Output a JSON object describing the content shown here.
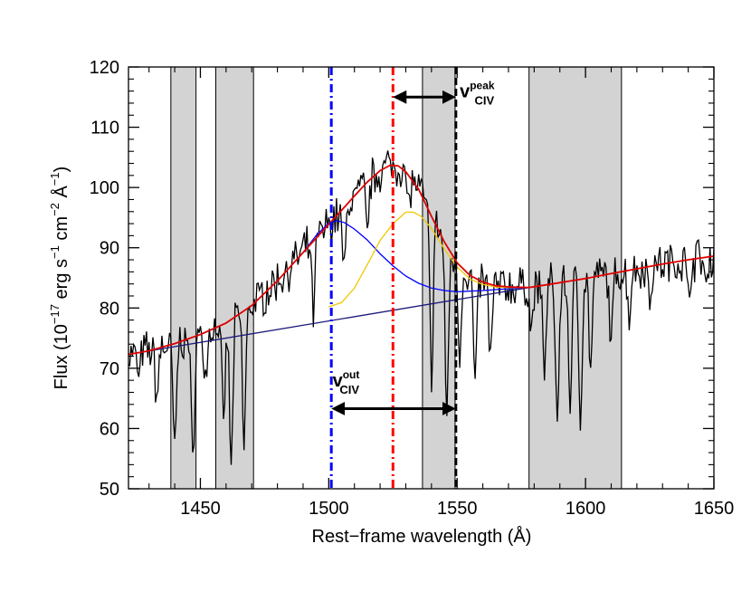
{
  "chart_data": {
    "type": "line",
    "xlabel": "Rest−frame wavelength (Å)",
    "ylabel": {
      "prefix": "Flux (10",
      "exp1": "−17",
      "mid1": " erg s",
      "exp2": "−1",
      "mid2": " cm",
      "exp3": "−2",
      "mid3": " Å",
      "exp4": "−1",
      "suffix": ")"
    },
    "xlim": [
      1422,
      1650
    ],
    "ylim": [
      50,
      120
    ],
    "xticks": [
      1450,
      1500,
      1550,
      1600,
      1650
    ],
    "yticks": [
      50,
      60,
      70,
      80,
      90,
      100,
      110,
      120
    ],
    "masked_regions": [
      [
        1438.5,
        1448.3
      ],
      [
        1456,
        1470.7
      ],
      [
        1536.5,
        1549.2
      ],
      [
        1578,
        1614
      ]
    ],
    "vlines": [
      {
        "name": "outflow-position",
        "x": 1501,
        "color": "#0000ff",
        "style": "dash-dot"
      },
      {
        "name": "peak-position",
        "x": 1525,
        "color": "#ff0000",
        "style": "dash-dot"
      },
      {
        "name": "civ-rest",
        "x": 1549.5,
        "color": "#000000",
        "style": "dashed"
      }
    ],
    "annotations": {
      "peak": {
        "base": "v",
        "sub": "CIV",
        "sup": "peak",
        "arrow_from": 1525,
        "arrow_to": 1549.5,
        "arrow_y": 115,
        "label_x": 1551,
        "label_y": 115
      },
      "out": {
        "base": "v",
        "sub": "CIV",
        "sup": "out",
        "arrow_from": 1501,
        "arrow_to": 1549.5,
        "arrow_y": 63.3,
        "label_x": 1501.5,
        "label_y": 67
      }
    },
    "series": [
      {
        "name": "continuum",
        "color": "#1a1a7a",
        "points": [
          [
            1422,
            72.3
          ],
          [
            1578,
            83.4
          ]
        ]
      },
      {
        "name": "total-model",
        "color": "#e00000",
        "points": [
          [
            1422,
            72.3
          ],
          [
            1430,
            72.9
          ],
          [
            1440,
            74.1
          ],
          [
            1450,
            75.6
          ],
          [
            1460,
            77.5
          ],
          [
            1470,
            80.4
          ],
          [
            1480,
            84.5
          ],
          [
            1490,
            89.2
          ],
          [
            1500,
            93.9
          ],
          [
            1505,
            96.2
          ],
          [
            1510,
            98.6
          ],
          [
            1515,
            100.9
          ],
          [
            1520,
            102.8
          ],
          [
            1524,
            103.7
          ],
          [
            1527,
            103.6
          ],
          [
            1530,
            102.6
          ],
          [
            1535,
            99.7
          ],
          [
            1540,
            95.2
          ],
          [
            1545,
            91.0
          ],
          [
            1550,
            87.5
          ],
          [
            1555,
            85.4
          ],
          [
            1560,
            84.3
          ],
          [
            1565,
            83.7
          ],
          [
            1570,
            83.5
          ],
          [
            1578,
            83.4
          ],
          [
            1590,
            84.2
          ],
          [
            1600,
            84.9
          ],
          [
            1610,
            85.7
          ],
          [
            1620,
            86.5
          ],
          [
            1630,
            87.3
          ],
          [
            1640,
            88.0
          ],
          [
            1650,
            88.6
          ]
        ]
      },
      {
        "name": "outflow-gaussian",
        "color": "#0000ff",
        "points": [
          [
            1422,
            72.3
          ],
          [
            1430,
            72.9
          ],
          [
            1440,
            74.1
          ],
          [
            1450,
            75.6
          ],
          [
            1460,
            77.5
          ],
          [
            1470,
            80.4
          ],
          [
            1480,
            84.5
          ],
          [
            1490,
            89.2
          ],
          [
            1495,
            92.0
          ],
          [
            1500,
            94.1
          ],
          [
            1503,
            94.5
          ],
          [
            1506,
            94.2
          ],
          [
            1510,
            93.1
          ],
          [
            1515,
            91.3
          ],
          [
            1520,
            89.0
          ],
          [
            1525,
            87.0
          ],
          [
            1530,
            85.3
          ],
          [
            1535,
            84.1
          ],
          [
            1540,
            83.3
          ],
          [
            1545,
            82.9
          ],
          [
            1550,
            82.7
          ],
          [
            1560,
            82.9
          ],
          [
            1570,
            83.2
          ],
          [
            1578,
            83.4
          ]
        ]
      },
      {
        "name": "core-gaussian",
        "color": "#f0c800",
        "points": [
          [
            1500,
            80.2
          ],
          [
            1505,
            80.9
          ],
          [
            1510,
            83.3
          ],
          [
            1515,
            87.2
          ],
          [
            1520,
            91.2
          ],
          [
            1525,
            94.0
          ],
          [
            1530,
            95.9
          ],
          [
            1533,
            95.9
          ],
          [
            1536,
            95.2
          ],
          [
            1540,
            93.2
          ],
          [
            1545,
            89.8
          ],
          [
            1550,
            86.8
          ],
          [
            1555,
            84.8
          ],
          [
            1560,
            83.9
          ],
          [
            1565,
            83.5
          ],
          [
            1570,
            83.4
          ],
          [
            1578,
            83.4
          ]
        ]
      },
      {
        "name": "observed-spectrum",
        "color": "#000000",
        "generated": true,
        "seed": 7
      }
    ]
  }
}
